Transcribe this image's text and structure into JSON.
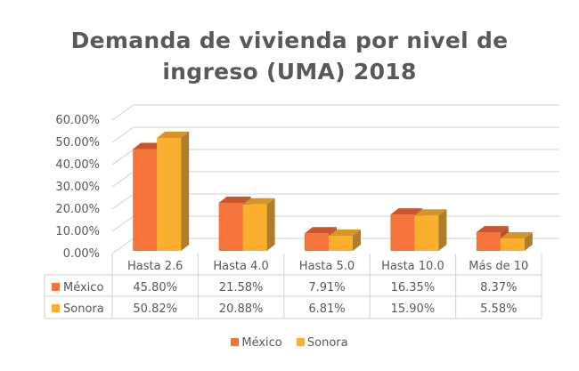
{
  "chart_data": {
    "type": "bar",
    "style": "3d-clustered-column-with-data-table",
    "title": "Demanda de vivienda por nivel de ingreso (UMA) 2018",
    "title_lines": [
      "Demanda de vivienda por nivel de",
      "ingreso (UMA) 2018"
    ],
    "categories": [
      "Hasta 2.6",
      "Hasta 4.0",
      "Hasta 5.0",
      "Hasta 10.0",
      "Más de 10"
    ],
    "series": [
      {
        "name": "México",
        "color": "#F4743B",
        "top_color": "#C9552A",
        "side_color": "#B8552C",
        "values": [
          45.8,
          21.58,
          7.91,
          16.35,
          8.37
        ],
        "labels": [
          "45.80%",
          "21.58%",
          "7.91%",
          "16.35%",
          "8.37%"
        ]
      },
      {
        "name": "Sonora",
        "color": "#FBB02D",
        "top_color": "#D69625",
        "side_color": "#B07D2C",
        "values": [
          50.82,
          20.88,
          6.81,
          15.9,
          5.58
        ],
        "labels": [
          "50.82%",
          "20.88%",
          "6.81%",
          "15.90%",
          "5.58%"
        ]
      }
    ],
    "yticks": [
      0,
      10,
      20,
      30,
      40,
      50,
      60
    ],
    "ytick_labels": [
      "0.00%",
      "10.00%",
      "20.00%",
      "30.00%",
      "40.00%",
      "50.00%",
      "60.00%"
    ],
    "ylim": [
      0,
      60
    ],
    "xlabel": "",
    "ylabel": "",
    "grid": true,
    "legend": {
      "position": "bottom",
      "entries": [
        "México",
        "Sonora"
      ]
    },
    "data_table": true
  }
}
